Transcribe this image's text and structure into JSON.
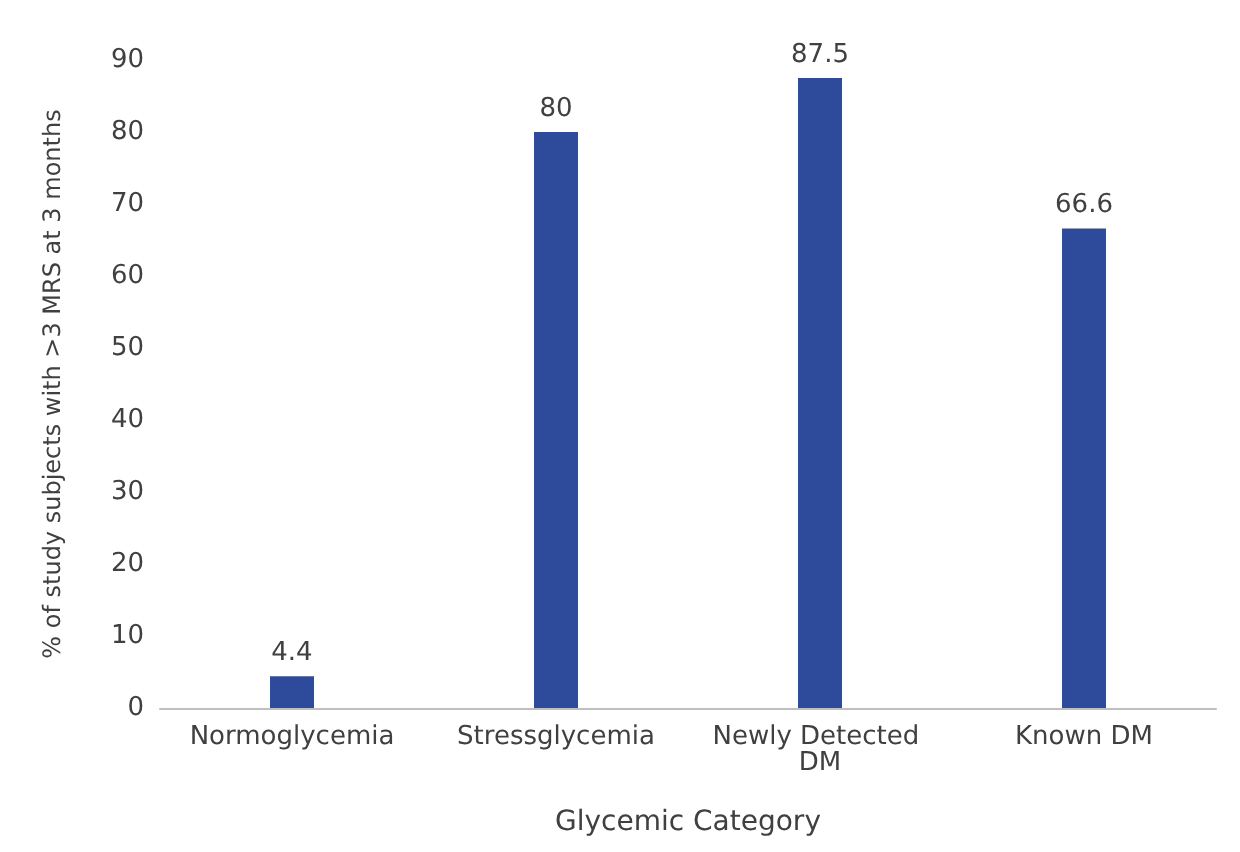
{
  "chart_data": {
    "type": "bar",
    "xlabel": "Glycemic Category",
    "ylabel": "% of study subjects with >3 MRS at 3 months",
    "categories": [
      "Normoglycemia",
      "Stressglycemia",
      "Newly Detected DM",
      "Known DM"
    ],
    "values": [
      4.4,
      80,
      87.5,
      66.6
    ],
    "color": "#2e4a9a",
    "ylim": [
      0,
      90
    ],
    "yticks": [
      0,
      10,
      20,
      30,
      40,
      50,
      60,
      70,
      80,
      90
    ],
    "grid": false,
    "data_labels": true
  }
}
